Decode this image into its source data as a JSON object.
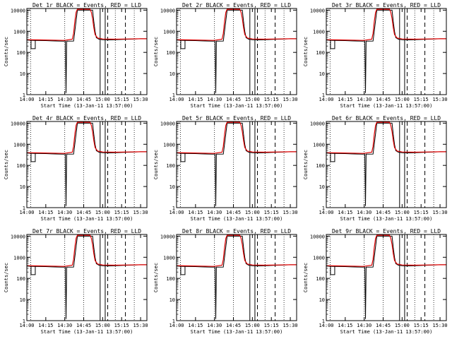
{
  "figure": {
    "background": "#ffffff",
    "black_color": "#000000",
    "red_color": "#e00000"
  },
  "panel_titles": [
    "Det 1r BLACK = Events, RED = LLD",
    "Det 2r BLACK = Events, RED = LLD",
    "Det 3r BLACK = Events, RED = LLD",
    "Det 4r BLACK = Events, RED = LLD",
    "Det 5r BLACK = Events, RED = LLD",
    "Det 6r BLACK = Events, RED = LLD",
    "Det 7r BLACK = Events, RED = LLD",
    "Det 8r BLACK = Events, RED = LLD",
    "Det 9r BLACK = Events, RED = LLD"
  ],
  "shared_axes": {
    "xlabel": "Start Time (13-Jan-11 13:57:00)",
    "ylabel": "Counts/sec",
    "x_ticks": [
      "14:00",
      "14:15",
      "14:30",
      "14:45",
      "15:00",
      "15:15",
      "15:30"
    ],
    "y_ticks": [
      "1",
      "10",
      "100",
      "1000",
      "10000"
    ],
    "y_scale": "log"
  },
  "chart_data": {
    "type": "line",
    "layout": "3x3 grid of identical-style panels (Det 1r to Det 9r)",
    "x_unit": "minutes after 14:00 (13-Jan-11)",
    "xlim": [
      0,
      95
    ],
    "ylim": [
      1,
      12000
    ],
    "y_scale": "log",
    "dotted_verticals": [
      3,
      30,
      45,
      70,
      85
    ],
    "dashed_verticals": [
      64,
      78
    ],
    "solid_verticals": [
      58,
      62
    ],
    "series": [
      {
        "name": "Events",
        "color": "black",
        "points": [
          [
            0,
            380
          ],
          [
            5,
            370
          ],
          [
            10,
            365
          ],
          [
            15,
            360
          ],
          [
            20,
            350
          ],
          [
            25,
            345
          ],
          [
            29,
            340
          ],
          [
            30.5,
            340
          ],
          [
            31,
            1.2
          ],
          [
            31.5,
            340
          ],
          [
            37,
            345
          ],
          [
            40,
            10000
          ],
          [
            52,
            10000
          ],
          [
            53,
            3000
          ],
          [
            54,
            1000
          ],
          [
            55,
            500
          ],
          [
            57,
            420
          ],
          [
            60,
            400
          ],
          [
            65,
            390
          ],
          [
            70,
            400
          ],
          [
            75,
            410
          ],
          [
            80,
            420
          ],
          [
            85,
            430
          ],
          [
            90,
            440
          ],
          [
            95,
            440
          ]
        ]
      },
      {
        "name": "LLD",
        "color": "red",
        "points": [
          [
            0,
            400
          ],
          [
            10,
            390
          ],
          [
            20,
            380
          ],
          [
            29,
            370
          ],
          [
            31,
            380
          ],
          [
            36,
            420
          ],
          [
            37,
            800
          ],
          [
            38,
            3000
          ],
          [
            39,
            8000
          ],
          [
            40,
            11000
          ],
          [
            50,
            11000
          ],
          [
            51,
            8000
          ],
          [
            52,
            4000
          ],
          [
            53,
            1500
          ],
          [
            54,
            700
          ],
          [
            56,
            480
          ],
          [
            60,
            430
          ],
          [
            70,
            420
          ],
          [
            80,
            430
          ],
          [
            90,
            440
          ],
          [
            95,
            440
          ]
        ]
      }
    ]
  }
}
